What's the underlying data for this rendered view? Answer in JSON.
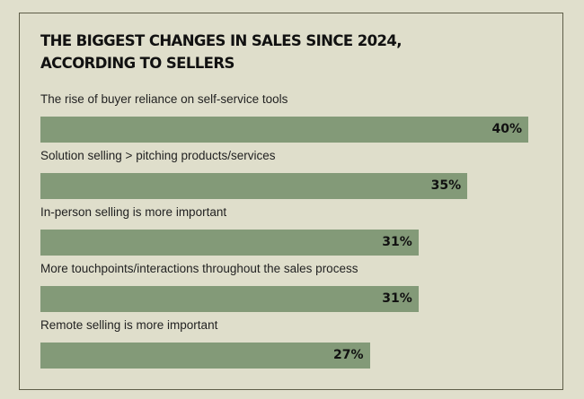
{
  "chart_data": {
    "type": "bar",
    "orientation": "horizontal",
    "title": "THE BIGGEST CHANGES IN SALES SINCE 2024, ACCORDING TO SELLERS",
    "title_lines": [
      "THE BIGGEST CHANGES IN SALES SINCE 2024,",
      "ACCORDING TO SELLERS"
    ],
    "categories": [
      "The rise of buyer reliance on self-service tools",
      "Solution selling > pitching products/services",
      "In-person selling is more important",
      "More touchpoints/interactions throughout the sales process",
      "Remote selling is more important"
    ],
    "values": [
      40,
      35,
      31,
      31,
      27
    ],
    "value_labels": [
      "40%",
      "35%",
      "31%",
      "31%",
      "27%"
    ],
    "unit": "%",
    "xlabel": "",
    "ylabel": "",
    "xlim": [
      0,
      40
    ],
    "grid": false,
    "colors": {
      "bar": "#839a78",
      "background": "#dfdecb",
      "border": "#5e5d48"
    }
  }
}
